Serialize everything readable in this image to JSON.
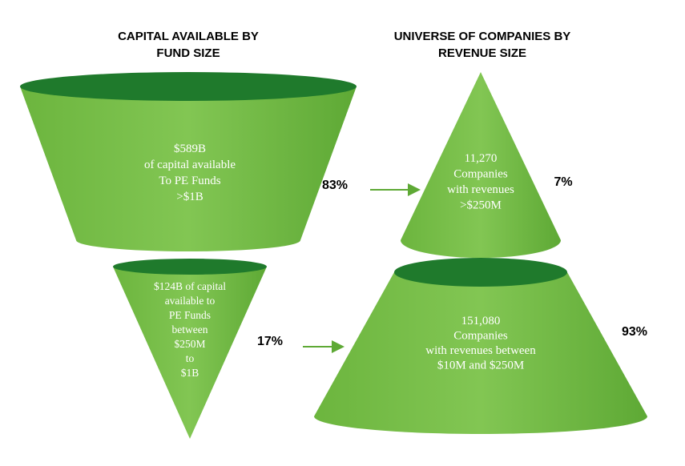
{
  "columns": [
    {
      "title": [
        "CAPITAL AVAILABLE BY",
        "FUND SIZE"
      ],
      "shapes": [
        {
          "lines": [
            "$589B",
            "of capital available",
            "To PE Funds",
            ">$1B"
          ],
          "percent": "83%"
        },
        {
          "lines": [
            "$124B of capital",
            "available to",
            "PE Funds",
            "between",
            "$250M",
            "to",
            "$1B"
          ],
          "percent": "17%"
        }
      ]
    },
    {
      "title": [
        "UNIVERSE OF COMPANIES BY",
        "REVENUE SIZE"
      ],
      "shapes": [
        {
          "lines": [
            "11,270",
            "Companies",
            "with revenues",
            ">$250M"
          ],
          "percent": "7%"
        },
        {
          "lines": [
            "151,080",
            "Companies",
            "with revenues between",
            "$10M and $250M"
          ],
          "percent": "93%"
        }
      ]
    }
  ]
}
